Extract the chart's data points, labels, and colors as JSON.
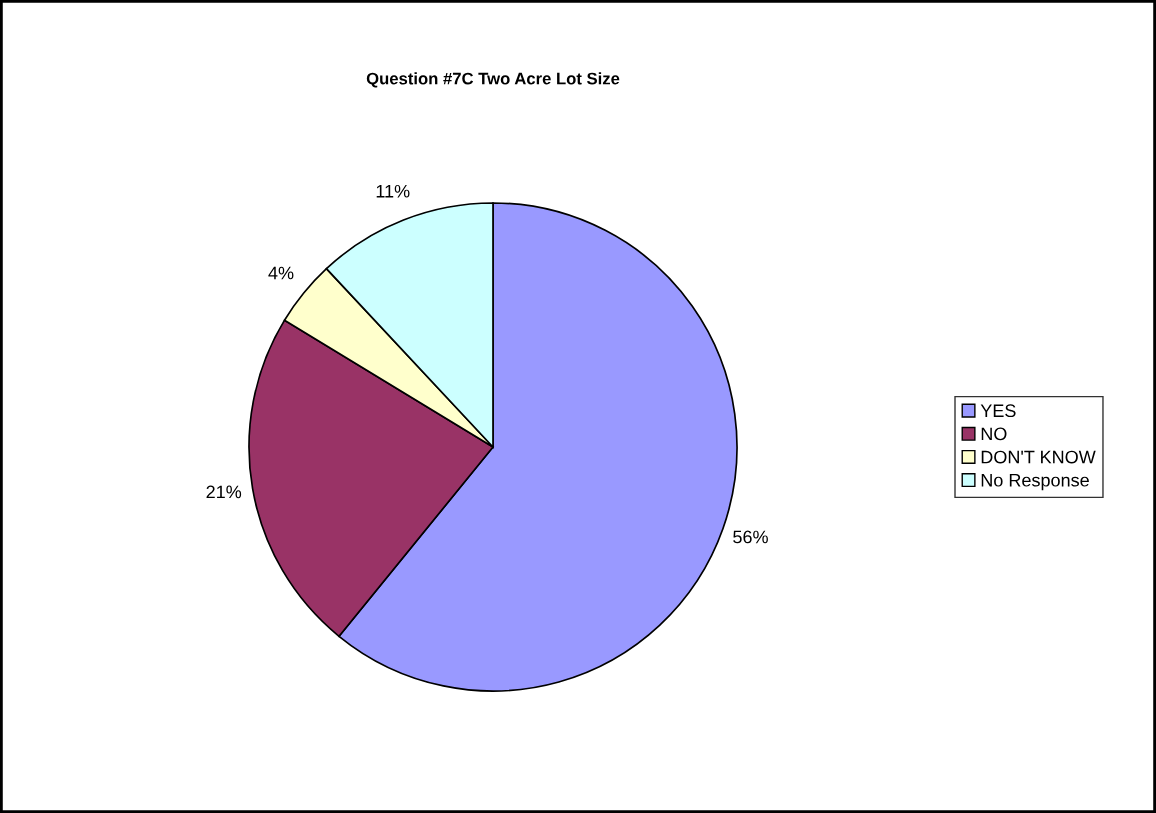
{
  "chart_data": {
    "type": "pie",
    "title": "Question #7C Two Acre Lot Size",
    "categories": [
      "YES",
      "NO",
      "DON'T KNOW",
      "No Response"
    ],
    "values": [
      56,
      21,
      4,
      11
    ],
    "colors": [
      "#9999ff",
      "#993366",
      "#ffffcc",
      "#ccffff"
    ],
    "value_labels": [
      "56%",
      "21%",
      "4%",
      "11%"
    ],
    "legend": "right"
  }
}
